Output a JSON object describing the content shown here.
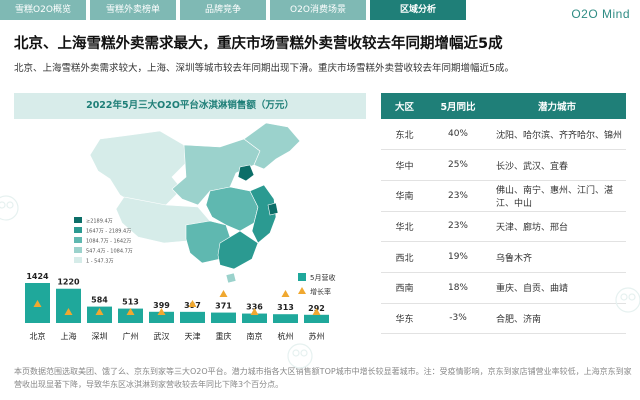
{
  "nav": {
    "tabs": [
      {
        "label": "雪糕O2O概览",
        "active": false
      },
      {
        "label": "雪糕外卖榜单",
        "active": false
      },
      {
        "label": "品牌竞争",
        "active": false
      },
      {
        "label": "O2O消费场景",
        "active": false
      },
      {
        "label": "区域分析",
        "active": true
      }
    ],
    "logo": "O2O Mind"
  },
  "headline": "北京、上海雪糕外卖需求最大，重庆市场雪糕外卖营收较去年同期增幅近5成",
  "subline": "北京、上海雪糕外卖需求较大，上海、深圳等城市较去年同期出现下滑。重庆市场雪糕外卖营收较去年同期增幅近5成。",
  "chart_data": {
    "type": "bar",
    "title": "2022年5月三大O2O平台冰淇淋销售额（万元）",
    "categories": [
      "北京",
      "上海",
      "深圳",
      "广州",
      "武汉",
      "天津",
      "重庆",
      "南京",
      "杭州",
      "苏州"
    ],
    "series": [
      {
        "name": "5月营收",
        "values": [
          1424,
          1220,
          584,
          513,
          399,
          397,
          371,
          336,
          313,
          292
        ]
      },
      {
        "name": "增长率",
        "marker": "triangle"
      }
    ],
    "growth_marker_level": [
      "mid",
      "low",
      "low",
      "low",
      "low",
      "mid",
      "high",
      "low",
      "high",
      "low"
    ],
    "map_legend": [
      "≥2189.4万",
      "1647万 - 2189.4万",
      "1084.7万 - 1642万",
      "547.4万 - 1084.7万",
      "1 - 547.3万"
    ],
    "colors": {
      "bar": "#1fa89b",
      "marker": "#f0a830",
      "map_levels": [
        "#0c6e68",
        "#2b9a91",
        "#5fb8b0",
        "#9bd2cc",
        "#d6ece9"
      ]
    }
  },
  "table": {
    "headers": [
      "大区",
      "5月同比",
      "潜力城市"
    ],
    "rows": [
      {
        "region": "东北",
        "yoy": "40%",
        "cities": "沈阳、哈尔滨、齐齐哈尔、锦州"
      },
      {
        "region": "华中",
        "yoy": "25%",
        "cities": "长沙、武汉、宜春"
      },
      {
        "region": "华南",
        "yoy": "23%",
        "cities": "佛山、南宁、惠州、江门、湛江、中山"
      },
      {
        "region": "华北",
        "yoy": "23%",
        "cities": "天津、廊坊、邢台"
      },
      {
        "region": "西北",
        "yoy": "19%",
        "cities": "乌鲁木齐"
      },
      {
        "region": "西南",
        "yoy": "18%",
        "cities": "重庆、自贡、曲靖"
      },
      {
        "region": "华东",
        "yoy": "-3%",
        "cities": "合肥、济南"
      }
    ]
  },
  "footnote": "本页数据范围选取美团、饿了么、京东到家等三大O2O平台。潜力城市指各大区销售额TOP城市中增长较显著城市。注：受疫情影响，京东到家店铺营业率较低，上海京东到家营收出现显著下降，导致华东区冰淇淋到家营收较去年同比下降3个百分点。"
}
